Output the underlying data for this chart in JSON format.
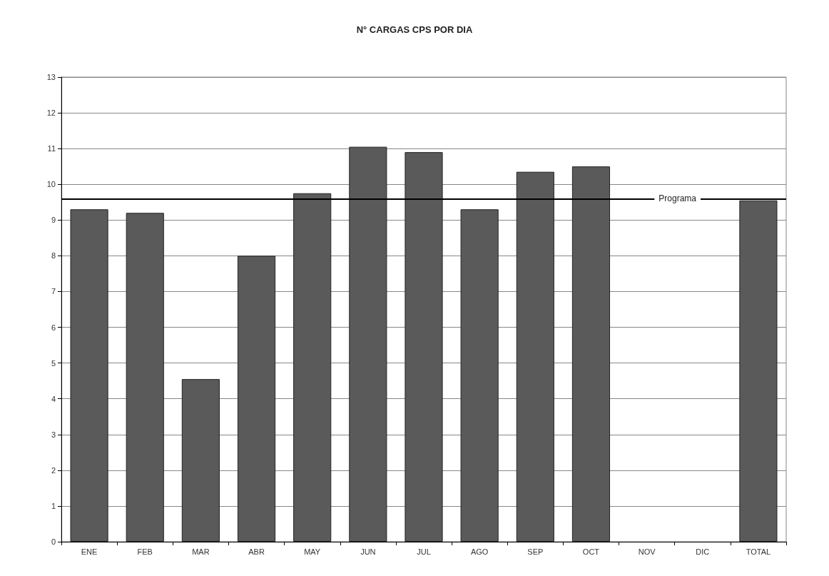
{
  "chart_data": {
    "type": "bar",
    "title": "N° CARGAS CPS POR DIA",
    "categories": [
      "ENE",
      "FEB",
      "MAR",
      "ABR",
      "MAY",
      "JUN",
      "JUL",
      "AGO",
      "SEP",
      "OCT",
      "NOV",
      "DIC",
      "TOTAL"
    ],
    "values": [
      9.3,
      9.2,
      4.55,
      8.0,
      9.75,
      11.05,
      10.9,
      9.3,
      10.35,
      10.5,
      null,
      null,
      9.55
    ],
    "color": "#5a5a5a",
    "ylim": [
      0,
      13
    ],
    "yticks": [
      0,
      1,
      2,
      3,
      4,
      5,
      6,
      7,
      8,
      9,
      10,
      11,
      12,
      13
    ],
    "grid": "y",
    "ref_lines": [
      {
        "axis": "y",
        "value": 9.6,
        "label": "Programa",
        "color": "#000000"
      }
    ]
  }
}
